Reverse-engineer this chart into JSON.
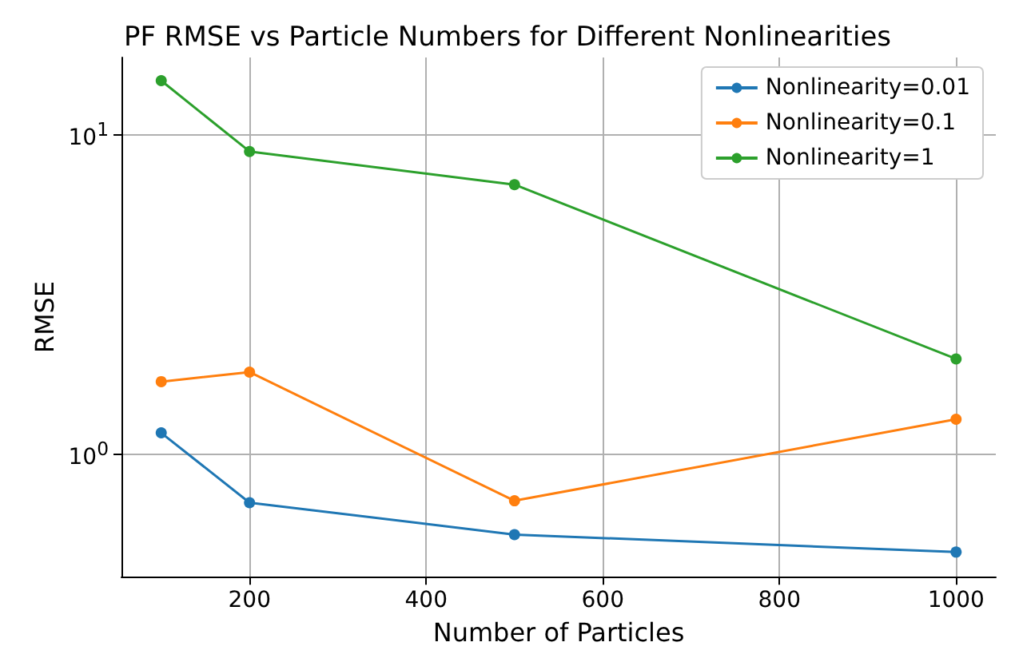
{
  "chart_data": {
    "type": "line",
    "title": "PF RMSE vs Particle Numbers for Different Nonlinearities",
    "xlabel": "Number of Particles",
    "ylabel": "RMSE",
    "x": [
      100,
      200,
      500,
      1000
    ],
    "series": [
      {
        "name": "Nonlinearity=0.01",
        "color": "#1f77b4",
        "values": [
          1.16,
          0.7,
          0.556,
          0.49
        ]
      },
      {
        "name": "Nonlinearity=0.1",
        "color": "#ff7f0e",
        "values": [
          1.68,
          1.8,
          0.71,
          1.28
        ]
      },
      {
        "name": "Nonlinearity=1",
        "color": "#2ca02c",
        "values": [
          14.8,
          8.87,
          6.98,
          1.98
        ]
      }
    ],
    "xlim": [
      55,
      1045
    ],
    "xticks": [
      200,
      400,
      600,
      800,
      1000
    ],
    "ylim": [
      0.41,
      17.5
    ],
    "yticks": [
      {
        "value": 1,
        "label": "10$^{0}$"
      },
      {
        "value": 10,
        "label": "10$^{1}$"
      }
    ],
    "log": "y",
    "grid": true,
    "legend": "top right",
    "marker": "circle",
    "line_style": "solid"
  }
}
